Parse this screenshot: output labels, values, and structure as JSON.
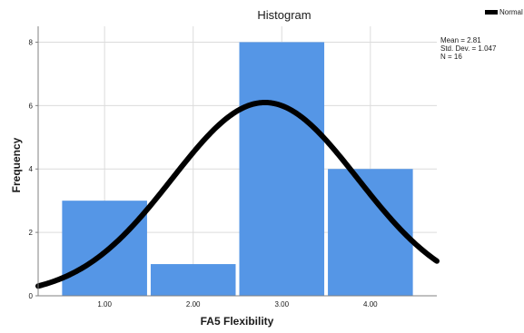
{
  "chart_data": {
    "type": "bar",
    "title": "Histogram",
    "xlabel": "FA5 Flexibility",
    "ylabel": "Frequency",
    "categories": [
      "1.00",
      "2.00",
      "3.00",
      "4.00"
    ],
    "values": [
      3,
      1,
      8,
      4
    ],
    "ylim": [
      0,
      8.5
    ],
    "xlim": [
      0.25,
      4.75
    ],
    "y_ticks": [
      "0",
      "2",
      "4",
      "6",
      "8"
    ],
    "grid": true,
    "bar_color": "#5596e6",
    "normal_curve": {
      "mean": 2.81,
      "std_dev": 1.047,
      "n": 16,
      "bin_width": 1,
      "color": "#000000"
    },
    "stats_lines": [
      "Mean = 2.81",
      "Std. Dev. = 1.047",
      "N = 16"
    ],
    "legend": {
      "label": "Normal",
      "position": "top-right"
    }
  }
}
